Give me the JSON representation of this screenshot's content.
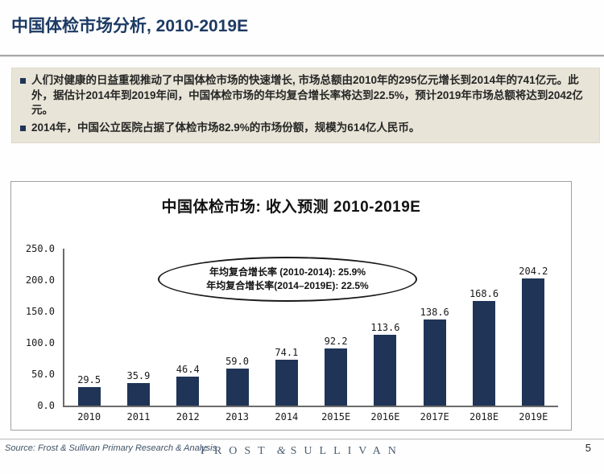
{
  "slide": {
    "title": "中国体检市场分析, 2010-2019E",
    "page_number": "5"
  },
  "bullets": {
    "items": [
      "人们对健康的日益重视推动了中国体检市场的快速增长, 市场总额由2010年的295亿元增长到2014年的741亿元。此外，据估计2014年到2019年间，中国体检市场的年均复合增长率将达到22.5%，预计2019年市场总额将达到2042亿元。",
      "2014年，中国公立医院占据了体检市场82.9%的市场份额，规模为614亿人民币。"
    ]
  },
  "chart_data": {
    "type": "bar",
    "title": "中国体检市场: 收入预测  2010-2019E",
    "categories": [
      "2010",
      "2011",
      "2012",
      "2013",
      "2014",
      "2015E",
      "2016E",
      "2017E",
      "2018E",
      "2019E"
    ],
    "values": [
      29.5,
      35.9,
      46.4,
      59.0,
      74.1,
      92.2,
      113.6,
      138.6,
      168.6,
      204.2
    ],
    "value_labels": [
      "29.5",
      "35.9",
      "46.4",
      "59.0",
      "74.1",
      "92.2",
      "113.6",
      "138.6",
      "168.6",
      "204.2"
    ],
    "ytick_labels": [
      "250.0",
      "200.0",
      "150.0",
      "100.0",
      "50.0",
      "0.0"
    ],
    "ylim": [
      0,
      250
    ],
    "grid": false,
    "legend": "none",
    "bar_color": "#1f3456",
    "annotation": {
      "lines": [
        "年均复合增长率 (2010-2014): 25.9%",
        "年均复合增长率(2014–2019E): 22.5%"
      ]
    }
  },
  "footer": {
    "source": "Source: Frost & Sullivan Primary Research & Analysis",
    "logo": {
      "left": "FROST",
      "amp": "&",
      "right": "SULLIVAN"
    }
  },
  "colors": {
    "accent_navy": "#1f3456",
    "panel_beige": "#e8e4d7",
    "title_blue": "#1c3a63"
  }
}
